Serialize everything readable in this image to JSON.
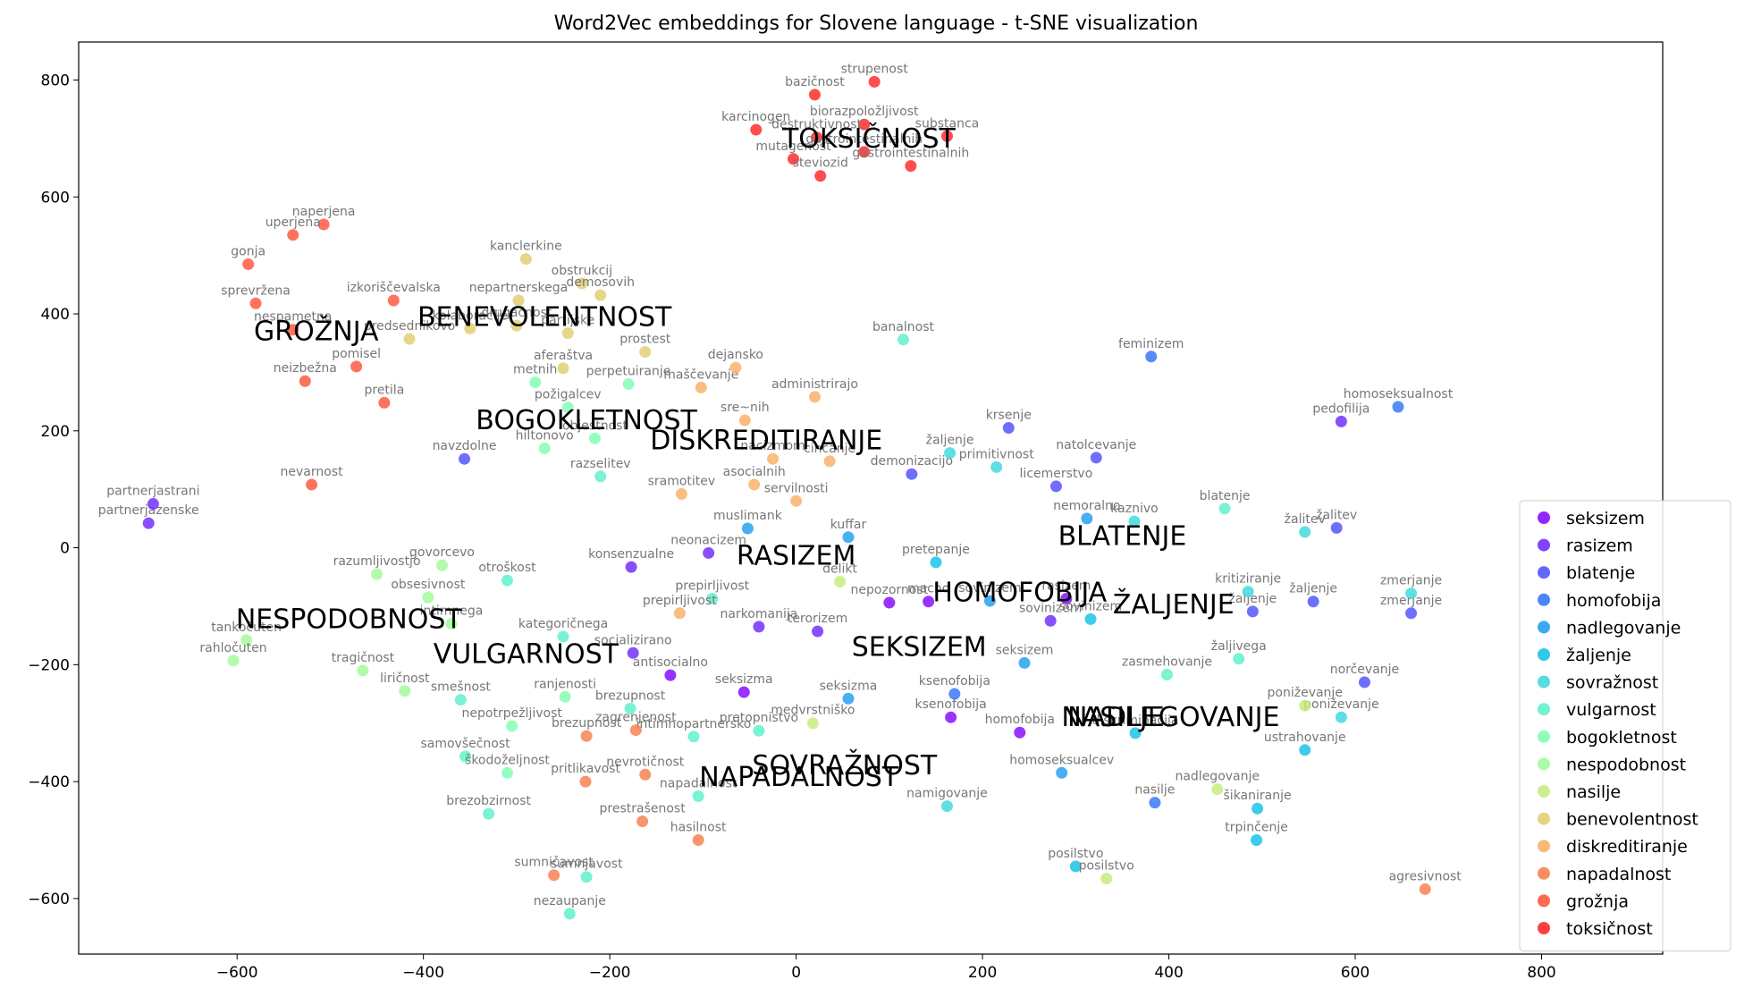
{
  "chart_data": {
    "type": "scatter",
    "title": "Word2Vec embeddings for Slovene language - t-SNE visualization",
    "xlim": [
      -770,
      930
    ],
    "ylim": [
      -695,
      865
    ],
    "xticks": [
      -600,
      -400,
      -200,
      0,
      200,
      400,
      600,
      800
    ],
    "yticks": [
      -600,
      -400,
      -200,
      0,
      200,
      400,
      600,
      800
    ],
    "xtick_labels": [
      "−600",
      "−400",
      "−200",
      "0",
      "200",
      "400",
      "600",
      "800"
    ],
    "ytick_labels": [
      "−600",
      "−400",
      "−200",
      "0",
      "200",
      "400",
      "600",
      "800"
    ],
    "grid": false,
    "legend_position": "lower-right",
    "series": [
      {
        "name": "seksizem",
        "color": "#8000ff",
        "points": [
          {
            "x": 100,
            "y": -94,
            "label": "nepozornost"
          },
          {
            "x": 142,
            "y": -92,
            "label": "macho"
          },
          {
            "x": 166,
            "y": -290,
            "label": "ksenofobija"
          },
          {
            "x": 240,
            "y": -316,
            "label": "homofobija"
          },
          {
            "x": 290,
            "y": -87,
            "label": "rasizem"
          },
          {
            "x": -135,
            "y": -218,
            "label": "antisocialno"
          },
          {
            "x": -56,
            "y": -247,
            "label": "seksizma"
          }
        ]
      },
      {
        "name": "rasizem",
        "color": "#6a23fe",
        "points": [
          {
            "x": 585,
            "y": 216,
            "label": "pedofilija"
          },
          {
            "x": -175,
            "y": -180,
            "label": "socializirano"
          },
          {
            "x": -177,
            "y": -33,
            "label": "konsenzualne"
          },
          {
            "x": -94,
            "y": -9,
            "label": "neonacizem"
          },
          {
            "x": -40,
            "y": -135,
            "label": "narkomanija"
          },
          {
            "x": 23,
            "y": -143,
            "label": "terorizem"
          },
          {
            "x": 273,
            "y": -125,
            "label": "sovinizem"
          },
          {
            "x": -695,
            "y": 42,
            "label": "partnerjazenske"
          },
          {
            "x": -690,
            "y": 75,
            "label": "partnerjastrani"
          }
        ]
      },
      {
        "name": "blatenje",
        "color": "#4a4bfd",
        "points": [
          {
            "x": 228,
            "y": 205,
            "label": "krsenje"
          },
          {
            "x": 322,
            "y": 154,
            "label": "natolcevanje"
          },
          {
            "x": 279,
            "y": 105,
            "label": "licemerstvo"
          },
          {
            "x": 124,
            "y": 126,
            "label": "demonizacijo"
          },
          {
            "x": 580,
            "y": 34,
            "label": "žalitev"
          },
          {
            "x": 555,
            "y": -92,
            "label": "žaljenje"
          },
          {
            "x": 490,
            "y": -109,
            "label": "žaljenje"
          },
          {
            "x": 660,
            "y": -112,
            "label": "zmerjanje"
          },
          {
            "x": 610,
            "y": -230,
            "label": "norčevanje"
          },
          {
            "x": -356,
            "y": 152,
            "label": "navzdolne"
          }
        ]
      },
      {
        "name": "homofobija",
        "color": "#2c70f6",
        "points": [
          {
            "x": 381,
            "y": 327,
            "label": "feminizem"
          },
          {
            "x": 646,
            "y": 241,
            "label": "homoseksualnost"
          },
          {
            "x": 170,
            "y": -250,
            "label": "ksenofobija"
          },
          {
            "x": 385,
            "y": -436,
            "label": "nasilje"
          }
        ]
      },
      {
        "name": "nadlegovanje",
        "color": "#1a9bf0",
        "points": [
          {
            "x": -52,
            "y": 33,
            "label": "muslimank"
          },
          {
            "x": 56,
            "y": 18,
            "label": "kuffar"
          },
          {
            "x": 208,
            "y": -91,
            "label": "sovinizem"
          },
          {
            "x": 245,
            "y": -197,
            "label": "seksizem"
          },
          {
            "x": 56,
            "y": -258,
            "label": "seksizma"
          },
          {
            "x": 285,
            "y": -385,
            "label": "homoseksualcev"
          },
          {
            "x": 312,
            "y": 50,
            "label": "nemoralno"
          }
        ]
      },
      {
        "name": "žaljenje",
        "color": "#0dc0e6",
        "points": [
          {
            "x": 150,
            "y": -25,
            "label": "pretepanje"
          },
          {
            "x": 316,
            "y": -122,
            "label": "sovinizem"
          },
          {
            "x": 364,
            "y": -317,
            "label": "diskriminacija"
          },
          {
            "x": 495,
            "y": -446,
            "label": "šikaniranje"
          },
          {
            "x": 494,
            "y": -500,
            "label": "trpinčenje"
          },
          {
            "x": 546,
            "y": -346,
            "label": "ustrahovanje"
          },
          {
            "x": 300,
            "y": -545,
            "label": "posilstvo"
          }
        ]
      },
      {
        "name": "sovražnost",
        "color": "#3ad6dc",
        "points": [
          {
            "x": 165,
            "y": 162,
            "label": "žaljenje"
          },
          {
            "x": 215,
            "y": 138,
            "label": "primitivnost"
          },
          {
            "x": 363,
            "y": 45,
            "label": "kaznivo"
          },
          {
            "x": 546,
            "y": 27,
            "label": "žalitev"
          },
          {
            "x": 485,
            "y": -75,
            "label": "kritiziranje"
          },
          {
            "x": 660,
            "y": -78,
            "label": "zmerjanje"
          },
          {
            "x": 585,
            "y": -290,
            "label": "poniževanje"
          },
          {
            "x": 162,
            "y": -442,
            "label": "namigovanje"
          }
        ]
      },
      {
        "name": "vulgarnost",
        "color": "#58f0c8",
        "points": [
          {
            "x": 460,
            "y": 67,
            "label": "blatenje"
          },
          {
            "x": 398,
            "y": -217,
            "label": "zasmehovanje"
          },
          {
            "x": 475,
            "y": -190,
            "label": "žaljivega"
          },
          {
            "x": -90,
            "y": -87,
            "label": "prepirljivost"
          },
          {
            "x": -250,
            "y": -152,
            "label": "kategoričnega"
          },
          {
            "x": -178,
            "y": -275,
            "label": "brezupnost"
          },
          {
            "x": -110,
            "y": -323,
            "label": "intimnopartnersko"
          },
          {
            "x": -40,
            "y": -313,
            "label": "pretopnistvo"
          },
          {
            "x": -105,
            "y": -425,
            "label": "napadalnost"
          },
          {
            "x": -225,
            "y": -563,
            "label": "sumnjavost"
          },
          {
            "x": -243,
            "y": -626,
            "label": "nezaupanje"
          },
          {
            "x": -330,
            "y": -455,
            "label": "brezobzirnost"
          },
          {
            "x": -355,
            "y": -357,
            "label": "samovšečnost"
          },
          {
            "x": -360,
            "y": -260,
            "label": "smešnost"
          },
          {
            "x": -310,
            "y": -56,
            "label": "otroškost"
          },
          {
            "x": -210,
            "y": 122,
            "label": "razselitev"
          },
          {
            "x": 115,
            "y": 356,
            "label": "banalnost"
          }
        ]
      },
      {
        "name": "bogokletnost",
        "color": "#7efdb0",
        "points": [
          {
            "x": -280,
            "y": 283,
            "label": "metnih"
          },
          {
            "x": -180,
            "y": 280,
            "label": "perpetuiranje"
          },
          {
            "x": -270,
            "y": 170,
            "label": "hiltonovo"
          },
          {
            "x": -245,
            "y": 240,
            "label": "požigalcev"
          },
          {
            "x": -216,
            "y": 187,
            "label": "objestnost"
          },
          {
            "x": -305,
            "y": -305,
            "label": "nepotrpežljivost"
          },
          {
            "x": -310,
            "y": -385,
            "label": "škodoželjnost"
          },
          {
            "x": -248,
            "y": -255,
            "label": "ranjenosti"
          }
        ]
      },
      {
        "name": "nespodobnost",
        "color": "#9efa96",
        "points": [
          {
            "x": -450,
            "y": -45,
            "label": "razumljivostjo"
          },
          {
            "x": -380,
            "y": -30,
            "label": "govorcevo"
          },
          {
            "x": -395,
            "y": -85,
            "label": "obsesivnost"
          },
          {
            "x": -465,
            "y": -210,
            "label": "tragičnost"
          },
          {
            "x": -420,
            "y": -245,
            "label": "liričnost"
          },
          {
            "x": -590,
            "y": -158,
            "label": "tankočuten"
          },
          {
            "x": -604,
            "y": -193,
            "label": "rahločuten"
          },
          {
            "x": -370,
            "y": -130,
            "label": "intimnega"
          }
        ]
      },
      {
        "name": "nasilje",
        "color": "#c4eb78",
        "points": [
          {
            "x": 47,
            "y": -58,
            "label": "delikt"
          },
          {
            "x": 18,
            "y": -300,
            "label": "medvrstniško"
          },
          {
            "x": 452,
            "y": -413,
            "label": "nadlegovanje"
          },
          {
            "x": 546,
            "y": -270,
            "label": "poniževanje"
          },
          {
            "x": 333,
            "y": -566,
            "label": "posilstvo"
          }
        ]
      },
      {
        "name": "benevolentnost",
        "color": "#e0cc6c",
        "points": [
          {
            "x": -290,
            "y": 494,
            "label": "kanclerkine"
          },
          {
            "x": -230,
            "y": 452,
            "label": "obstrukcij"
          },
          {
            "x": -210,
            "y": 432,
            "label": "demosovih"
          },
          {
            "x": -298,
            "y": 423,
            "label": "nepartnerskega"
          },
          {
            "x": -415,
            "y": 357,
            "label": "predsednikovo"
          },
          {
            "x": -350,
            "y": 375,
            "label": "kolaboracije"
          },
          {
            "x": -300,
            "y": 380,
            "label": "drugačnost"
          },
          {
            "x": -245,
            "y": 367,
            "label": "partijske"
          },
          {
            "x": -162,
            "y": 335,
            "label": "prostest"
          },
          {
            "x": -250,
            "y": 307,
            "label": "aferaštva"
          }
        ]
      },
      {
        "name": "diskreditiranje",
        "color": "#f8ae60",
        "points": [
          {
            "x": -102,
            "y": 274,
            "label": "maščevanje"
          },
          {
            "x": -65,
            "y": 308,
            "label": "dejansko"
          },
          {
            "x": 20,
            "y": 258,
            "label": "administrirajo"
          },
          {
            "x": -55,
            "y": 218,
            "label": "sre~nih"
          },
          {
            "x": -25,
            "y": 152,
            "label": "nacizmom"
          },
          {
            "x": 36,
            "y": 148,
            "label": "cincanje"
          },
          {
            "x": -45,
            "y": 108,
            "label": "asocialnih"
          },
          {
            "x": -123,
            "y": 92,
            "label": "sramotitev"
          },
          {
            "x": 0,
            "y": 80,
            "label": "servilnosti"
          },
          {
            "x": -125,
            "y": -112,
            "label": "prepirljivost"
          }
        ]
      },
      {
        "name": "napadalnost",
        "color": "#f87a48",
        "points": [
          {
            "x": -225,
            "y": -322,
            "label": "brezupnost"
          },
          {
            "x": -172,
            "y": -312,
            "label": "zagrenjenost"
          },
          {
            "x": -226,
            "y": -400,
            "label": "pritlikavost"
          },
          {
            "x": -162,
            "y": -388,
            "label": "nevrotičnost"
          },
          {
            "x": -165,
            "y": -468,
            "label": "prestrašenost"
          },
          {
            "x": -105,
            "y": -500,
            "label": "hasilnost"
          },
          {
            "x": -260,
            "y": -560,
            "label": "sumničavost"
          },
          {
            "x": 675,
            "y": -584,
            "label": "agresivnost"
          }
        ]
      },
      {
        "name": "grožnja",
        "color": "#ff4f34",
        "points": [
          {
            "x": -507,
            "y": 553,
            "label": "naperjena"
          },
          {
            "x": -540,
            "y": 535,
            "label": "uperjena"
          },
          {
            "x": -588,
            "y": 485,
            "label": "gonja"
          },
          {
            "x": -580,
            "y": 418,
            "label": "sprevržena"
          },
          {
            "x": -432,
            "y": 423,
            "label": "izkoriščevalska"
          },
          {
            "x": -540,
            "y": 373,
            "label": "nespametna"
          },
          {
            "x": -472,
            "y": 310,
            "label": "pomisel"
          },
          {
            "x": -527,
            "y": 285,
            "label": "neizbežna"
          },
          {
            "x": -442,
            "y": 248,
            "label": "pretila"
          },
          {
            "x": -520,
            "y": 108,
            "label": "nevarnost"
          }
        ]
      },
      {
        "name": "toksičnost",
        "color": "#ff1f1f",
        "points": [
          {
            "x": 84,
            "y": 797,
            "label": "strupenost"
          },
          {
            "x": 20,
            "y": 775,
            "label": "bazičnost"
          },
          {
            "x": -43,
            "y": 715,
            "label": "karcinogen"
          },
          {
            "x": 73,
            "y": 724,
            "label": "biorazpoložljivost"
          },
          {
            "x": 22,
            "y": 702,
            "label": "destruktivnost"
          },
          {
            "x": 162,
            "y": 704,
            "label": "substanca"
          },
          {
            "x": 73,
            "y": 677,
            "label": "gastrointestinalnih"
          },
          {
            "x": -3,
            "y": 665,
            "label": "mutagenost"
          },
          {
            "x": 123,
            "y": 653,
            "label": "gastrointestinalnih"
          },
          {
            "x": 26,
            "y": 636,
            "label": "steviozid"
          }
        ]
      }
    ],
    "cluster_labels": [
      {
        "text": "TOKSIČNOST",
        "x": 78,
        "y": 700
      },
      {
        "text": "BENEVOLENTNOST",
        "x": -270,
        "y": 395
      },
      {
        "text": "GROŽNJA",
        "x": -515,
        "y": 370
      },
      {
        "text": "BOGOKLETNOST",
        "x": -225,
        "y": 218
      },
      {
        "text": "DISKREDITIRANJE",
        "x": -32,
        "y": 184
      },
      {
        "text": "RASIZEM",
        "x": 0,
        "y": -14
      },
      {
        "text": "BLATENJE",
        "x": 350,
        "y": 20
      },
      {
        "text": "ŽALJENJE",
        "x": 405,
        "y": -97
      },
      {
        "text": "HOMOFOBIJA",
        "x": 240,
        "y": -76
      },
      {
        "text": "NESPODOBNOST",
        "x": -480,
        "y": -122
      },
      {
        "text": "SEKSIZEM",
        "x": 132,
        "y": -170
      },
      {
        "text": "VULGARNOST",
        "x": -290,
        "y": -182
      },
      {
        "text": "NASILJE",
        "x": 340,
        "y": -290
      },
      {
        "text": "NADLEGOVANJE",
        "x": 405,
        "y": -290
      },
      {
        "text": "SOVRAŽNOST",
        "x": 52,
        "y": -372
      },
      {
        "text": "NAPADALNOST",
        "x": 3,
        "y": -392
      }
    ]
  }
}
